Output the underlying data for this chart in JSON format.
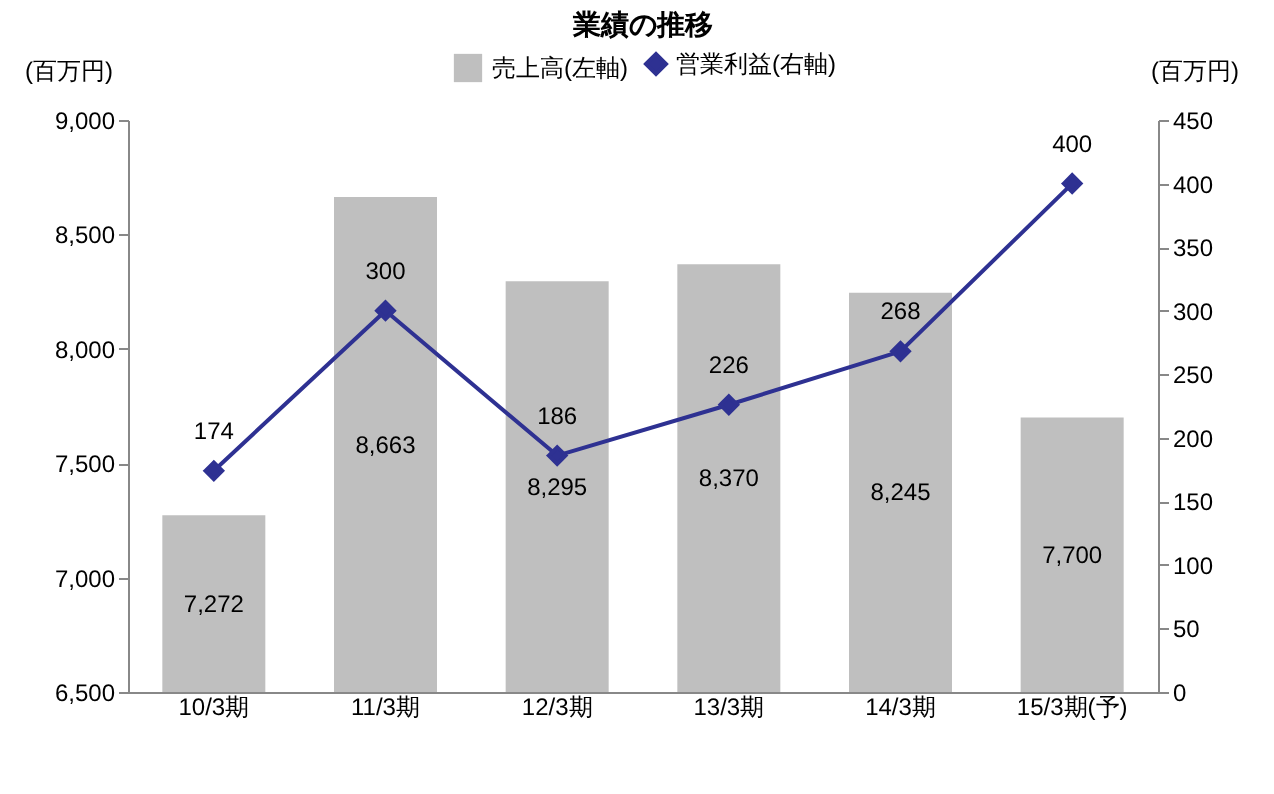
{
  "chart_data": {
    "type": "bar",
    "title": "業績の推移",
    "ylabel": "(百万円)",
    "y2label": "(百万円)",
    "categories": [
      "10/3期",
      "11/3期",
      "12/3期",
      "13/3期",
      "14/3期",
      "15/3期(予)"
    ],
    "series": [
      {
        "name": "売上高(左軸)",
        "color": "#bfbfbf",
        "values": [
          7272,
          8663,
          8295,
          8370,
          8245,
          7700
        ],
        "value_labels": [
          "7,272",
          "8,663",
          "8,295",
          "8,370",
          "8,245",
          "7,700"
        ]
      },
      {
        "name": "営業利益(右軸)",
        "type": "line",
        "axis": "y2",
        "color": "#2e3192",
        "values": [
          174,
          300,
          186,
          226,
          268,
          400
        ]
      }
    ],
    "ylim": [
      6500,
      9000
    ],
    "yticks": [
      {
        "value": 6500,
        "label": "6,500"
      },
      {
        "value": 7000,
        "label": "7,000"
      },
      {
        "value": 7500,
        "label": "7,500"
      },
      {
        "value": 8000,
        "label": "8,000"
      },
      {
        "value": 8500,
        "label": "8,500"
      },
      {
        "value": 9000,
        "label": "9,000"
      }
    ],
    "y2lim": [
      0,
      450
    ],
    "y2ticks": [
      0,
      50,
      100,
      150,
      200,
      250,
      300,
      350,
      400,
      450
    ],
    "data_labels": true,
    "legend": "top",
    "marker": "diamond",
    "grid": false
  }
}
